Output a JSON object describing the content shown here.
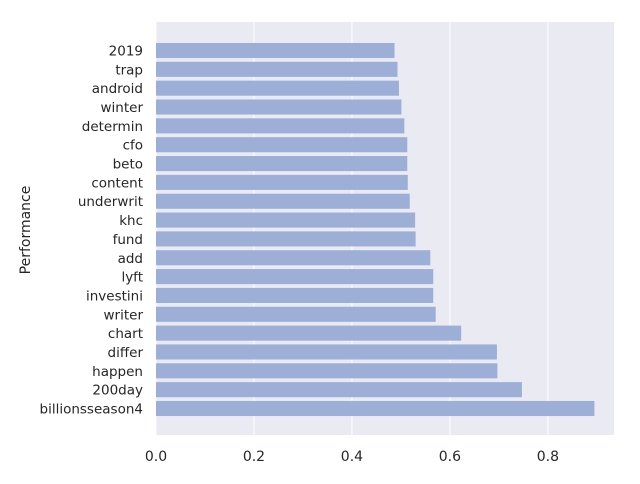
{
  "chart_data": {
    "type": "bar",
    "orientation": "horizontal",
    "title": "",
    "xlabel": "",
    "ylabel": "Performance",
    "categories": [
      "2019",
      "trap",
      "android",
      "winter",
      "determin",
      "cfo",
      "beto",
      "content",
      "underwrit",
      "khc",
      "fund",
      "add",
      "lyft",
      "investini",
      "writer",
      "chart",
      "differ",
      "happen",
      "200day",
      "billionsseason4"
    ],
    "values": [
      0.487,
      0.493,
      0.496,
      0.501,
      0.507,
      0.513,
      0.513,
      0.514,
      0.518,
      0.529,
      0.53,
      0.56,
      0.566,
      0.566,
      0.571,
      0.623,
      0.696,
      0.697,
      0.747,
      0.895
    ],
    "xlim": [
      0,
      0.935
    ],
    "xticks": [
      0.0,
      0.2,
      0.4,
      0.6,
      0.8
    ],
    "xtick_labels": [
      "0.0",
      "0.2",
      "0.4",
      "0.6",
      "0.8"
    ],
    "grid": true,
    "colors": {
      "plot_background": "#eaeaf2",
      "grid": "#ffffff",
      "bar": "#9dafd6",
      "text": "#262626"
    }
  }
}
